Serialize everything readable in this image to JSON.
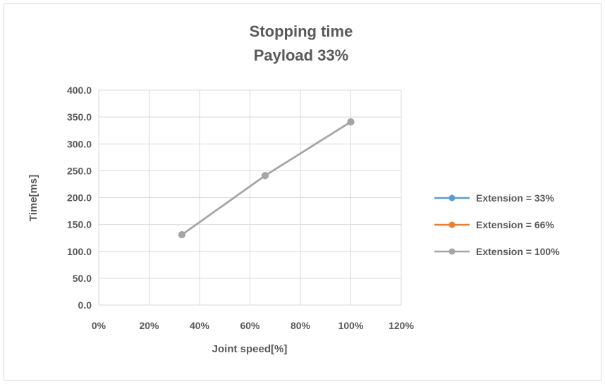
{
  "chart_data": {
    "type": "line",
    "title": [
      "Stopping time",
      "Payload 33%"
    ],
    "xlabel": "Joint speed[%]",
    "ylabel": "Time[ms]",
    "xlim": [
      0,
      120
    ],
    "ylim": [
      0,
      400
    ],
    "xticks": [
      0,
      20,
      40,
      60,
      80,
      100,
      120
    ],
    "xtick_labels": [
      "0%",
      "20%",
      "40%",
      "60%",
      "80%",
      "100%",
      "120%"
    ],
    "yticks": [
      0,
      50,
      100,
      150,
      200,
      250,
      300,
      350,
      400
    ],
    "ytick_labels": [
      "0.0",
      "50.0",
      "100.0",
      "150.0",
      "200.0",
      "250.0",
      "300.0",
      "350.0",
      "400.0"
    ],
    "grid": true,
    "legend_position": "right",
    "series": [
      {
        "name": "Extension = 33%",
        "color": "#5b9bd5",
        "x": [
          33,
          66,
          100
        ],
        "y": [
          131,
          241,
          341
        ]
      },
      {
        "name": "Extension = 66%",
        "color": "#ed7d31",
        "x": [
          33,
          66,
          100
        ],
        "y": [
          131,
          241,
          341
        ]
      },
      {
        "name": "Extension = 100%",
        "color": "#a5a5a5",
        "x": [
          33,
          66,
          100
        ],
        "y": [
          131,
          241,
          341
        ]
      }
    ]
  }
}
